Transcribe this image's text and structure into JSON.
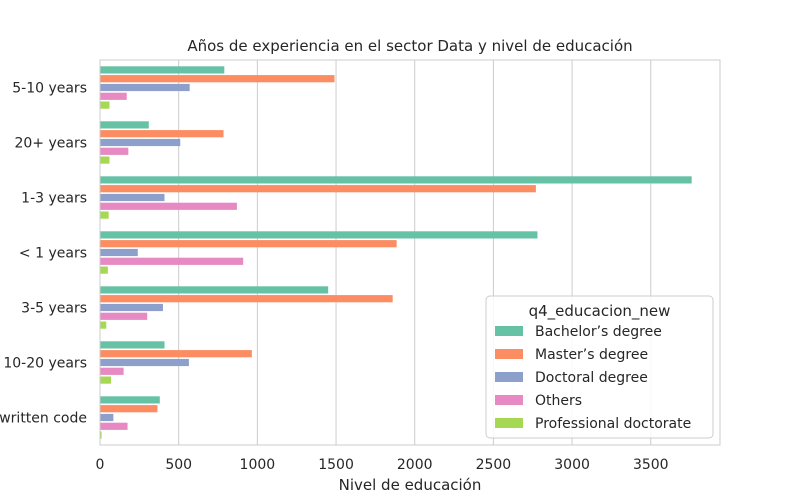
{
  "chart_data": {
    "type": "bar",
    "orientation": "horizontal",
    "title": "Años de experiencia en el sector Data y nivel de educación",
    "xlabel": "Nivel de educación",
    "ylabel": "",
    "xlim": [
      0,
      3940
    ],
    "xticks": [
      0,
      500,
      1000,
      1500,
      2000,
      2500,
      3000,
      3500
    ],
    "grid": true,
    "legend": {
      "title": "q4_educacion_new",
      "position": "lower-right"
    },
    "categories": [
      "5-10 years",
      "20+ years",
      "1-3 years",
      "< 1 years",
      "3-5 years",
      "10-20 years",
      "I have never written code"
    ],
    "series": [
      {
        "name": "Bachelor’s degree",
        "color": "#66c2a5",
        "values": [
          790,
          310,
          3760,
          2780,
          1450,
          410,
          380
        ]
      },
      {
        "name": "Master’s degree",
        "color": "#fc8d62",
        "values": [
          1490,
          785,
          2770,
          1885,
          1860,
          965,
          365
        ]
      },
      {
        "name": "Doctoral degree",
        "color": "#8da0cb",
        "values": [
          570,
          510,
          410,
          240,
          400,
          565,
          85
        ]
      },
      {
        "name": "Others",
        "color": "#e78ac3",
        "values": [
          170,
          180,
          870,
          910,
          300,
          150,
          175
        ]
      },
      {
        "name": "Professional doctorate",
        "color": "#a6d854",
        "values": [
          60,
          60,
          55,
          50,
          40,
          70,
          10
        ]
      }
    ]
  }
}
